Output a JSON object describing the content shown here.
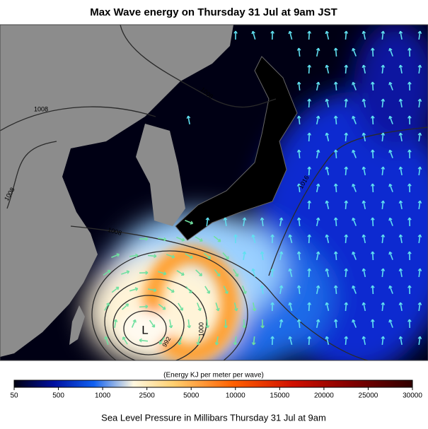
{
  "title": "Max Wave energy on Thursday 31 Jul at 9am JST",
  "map": {
    "isobar_labels": [
      "1008",
      "1008",
      "1008",
      "1008",
      "1016",
      "1000",
      "992"
    ],
    "low_label": "L"
  },
  "colorbar": {
    "label": "(Energy KJ per meter per wave)",
    "ticks": [
      50,
      500,
      1000,
      2500,
      5000,
      10000,
      15000,
      20000,
      25000,
      30000
    ]
  },
  "footer": "Sea Level Pressure in Millibars Thursday 31 Jul at 9am"
}
